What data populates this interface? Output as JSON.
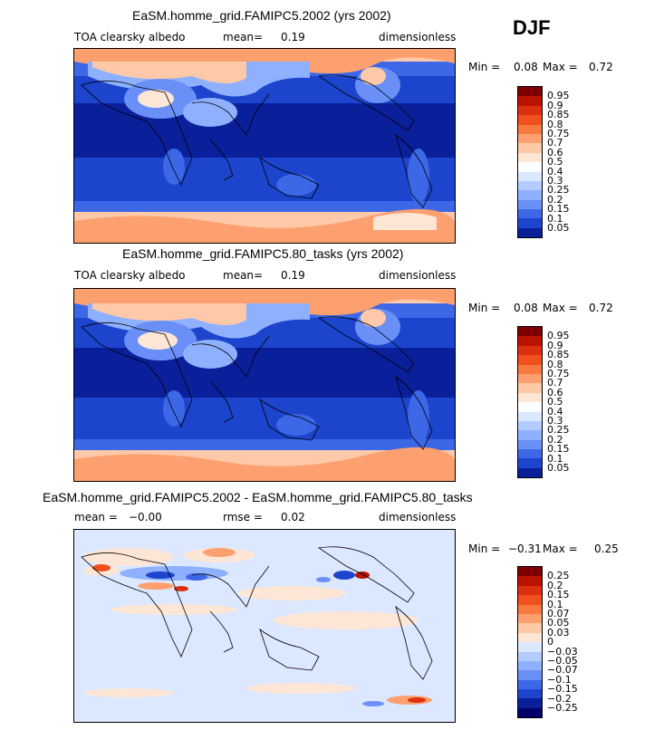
{
  "season": "DJF",
  "panels": [
    {
      "title": "EaSM.homme_grid.FAMIPC5.2002 (yrs 2002)",
      "variable": "TOA clearsky albedo",
      "mean_label": "mean=",
      "mean_value": "0.19",
      "units": "dimensionless",
      "min_label": "Min =",
      "min_value": "0.08",
      "max_label": "Max =",
      "max_value": "0.72",
      "colorbar_labels": [
        "0.95",
        "0.9",
        "0.85",
        "0.8",
        "0.75",
        "0.7",
        "0.6",
        "0.5",
        "0.4",
        "0.3",
        "0.25",
        "0.2",
        "0.15",
        "0.1",
        "0.05"
      ],
      "colorbar_colors": [
        "#7f0000",
        "#b81400",
        "#dc3010",
        "#f0501c",
        "#f87840",
        "#fca070",
        "#fdc9a8",
        "#fee6d6",
        "#ffffff",
        "#dbe8ff",
        "#b4ccff",
        "#8eb0ff",
        "#6a90f8",
        "#3c68e8",
        "#1c44cc",
        "#0a1f9a"
      ]
    },
    {
      "title": "EaSM.homme_grid.FAMIPC5.80_tasks (yrs 2002)",
      "variable": "TOA clearsky albedo",
      "mean_label": "mean=",
      "mean_value": "0.19",
      "units": "dimensionless",
      "min_label": "Min =",
      "min_value": "0.08",
      "max_label": "Max =",
      "max_value": "0.72",
      "colorbar_labels": [
        "0.95",
        "0.9",
        "0.85",
        "0.8",
        "0.75",
        "0.7",
        "0.6",
        "0.5",
        "0.4",
        "0.3",
        "0.25",
        "0.2",
        "0.15",
        "0.1",
        "0.05"
      ],
      "colorbar_colors": [
        "#7f0000",
        "#b81400",
        "#dc3010",
        "#f0501c",
        "#f87840",
        "#fca070",
        "#fdc9a8",
        "#fee6d6",
        "#ffffff",
        "#dbe8ff",
        "#b4ccff",
        "#8eb0ff",
        "#6a90f8",
        "#3c68e8",
        "#1c44cc",
        "#0a1f9a"
      ]
    },
    {
      "title": "EaSM.homme_grid.FAMIPC5.2002 - EaSM.homme_grid.FAMIPC5.80_tasks",
      "mean_label": "mean =",
      "mean_value": "−0.00",
      "rmse_label": "rmse =",
      "rmse_value": "0.02",
      "units": "dimensionless",
      "min_label": "Min =",
      "min_value": "−0.31",
      "max_label": "Max =",
      "max_value": "0.25",
      "colorbar_labels": [
        "0.25",
        "0.2",
        "0.15",
        "0.1",
        "0.07",
        "0.05",
        "0.03",
        "0",
        "−0.03",
        "−0.05",
        "−0.07",
        "−0.1",
        "−0.15",
        "−0.2",
        "−0.25"
      ],
      "colorbar_colors": [
        "#7f0000",
        "#b81400",
        "#dc3010",
        "#f0501c",
        "#f87840",
        "#fca070",
        "#fdc9a8",
        "#fee6d6",
        "#dbe8ff",
        "#b4ccff",
        "#8eb0ff",
        "#6a90f8",
        "#3c68e8",
        "#1c44cc",
        "#0a1f9a",
        "#00006a"
      ]
    }
  ],
  "chart_data": [
    {
      "type": "heatmap",
      "title": "EaSM.homme_grid.FAMIPC5.2002 (yrs 2002)",
      "subtitle": "TOA clearsky albedo",
      "units": "dimensionless",
      "mean": 0.19,
      "min": 0.08,
      "max": 0.72,
      "contour_levels": [
        0.05,
        0.1,
        0.15,
        0.2,
        0.25,
        0.3,
        0.4,
        0.5,
        0.6,
        0.7,
        0.75,
        0.8,
        0.85,
        0.9,
        0.95
      ]
    },
    {
      "type": "heatmap",
      "title": "EaSM.homme_grid.FAMIPC5.80_tasks (yrs 2002)",
      "subtitle": "TOA clearsky albedo",
      "units": "dimensionless",
      "mean": 0.19,
      "min": 0.08,
      "max": 0.72,
      "contour_levels": [
        0.05,
        0.1,
        0.15,
        0.2,
        0.25,
        0.3,
        0.4,
        0.5,
        0.6,
        0.7,
        0.75,
        0.8,
        0.85,
        0.9,
        0.95
      ]
    },
    {
      "type": "heatmap",
      "title": "EaSM.homme_grid.FAMIPC5.2002 - EaSM.homme_grid.FAMIPC5.80_tasks",
      "units": "dimensionless",
      "mean": -0.0,
      "rmse": 0.02,
      "min": -0.31,
      "max": 0.25,
      "contour_levels": [
        -0.25,
        -0.2,
        -0.15,
        -0.1,
        -0.07,
        -0.05,
        -0.03,
        0,
        0.03,
        0.05,
        0.07,
        0.1,
        0.15,
        0.2,
        0.25
      ]
    }
  ]
}
